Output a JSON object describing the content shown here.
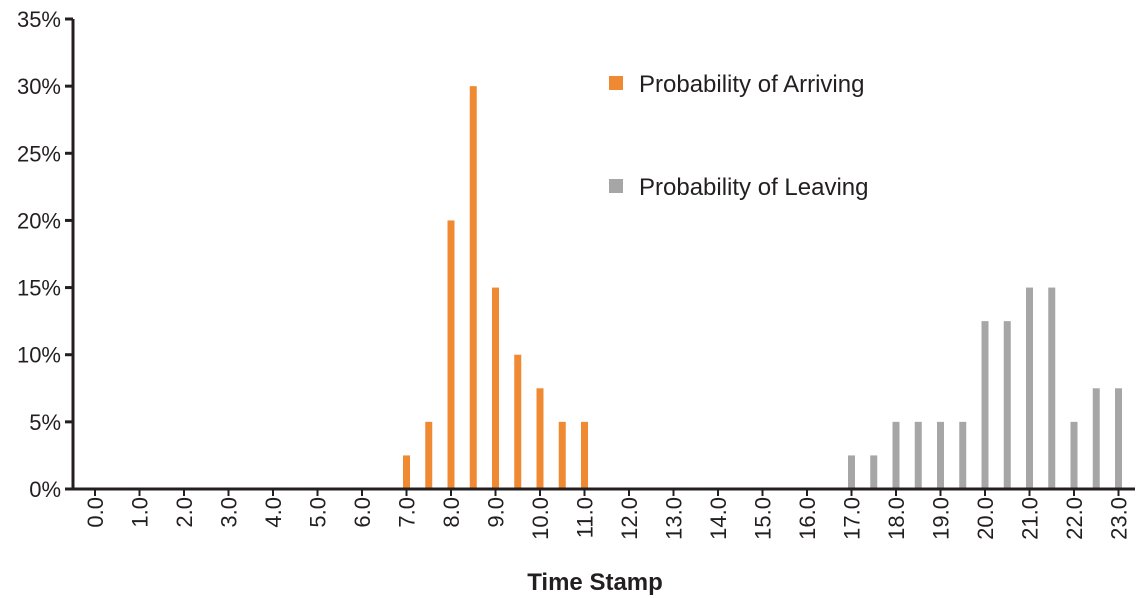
{
  "chart_data": {
    "type": "bar",
    "title": "",
    "xlabel": "Time Stamp",
    "ylabel": "",
    "ylim": [
      0,
      35
    ],
    "x_tick_labels": [
      "0.0",
      "1.0",
      "2.0",
      "3.0",
      "4.0",
      "5.0",
      "6.0",
      "7.0",
      "8.0",
      "9.0",
      "10.0",
      "11.0",
      "12.0",
      "13.0",
      "14.0",
      "15.0",
      "16.0",
      "17.0",
      "18.0",
      "19.0",
      "20.0",
      "21.0",
      "22.0",
      "23.0"
    ],
    "y_tick_labels": [
      "0%",
      "5%",
      "10%",
      "15%",
      "20%",
      "25%",
      "30%",
      "35%"
    ],
    "y_ticks": [
      0,
      5,
      10,
      15,
      20,
      25,
      30,
      35
    ],
    "grid": false,
    "legend_position": "top-right",
    "series": [
      {
        "name": "Probability of Arriving",
        "color": "#f08a32",
        "points": [
          {
            "x": 7.0,
            "y": 2.5
          },
          {
            "x": 7.5,
            "y": 5
          },
          {
            "x": 8.0,
            "y": 20
          },
          {
            "x": 8.5,
            "y": 30
          },
          {
            "x": 9.0,
            "y": 15
          },
          {
            "x": 9.5,
            "y": 10
          },
          {
            "x": 10.0,
            "y": 7.5
          },
          {
            "x": 10.5,
            "y": 5
          },
          {
            "x": 11.0,
            "y": 5
          }
        ]
      },
      {
        "name": "Probability of Leaving",
        "color": "#a6a6a6",
        "points": [
          {
            "x": 17.0,
            "y": 2.5
          },
          {
            "x": 17.5,
            "y": 2.5
          },
          {
            "x": 18.0,
            "y": 5
          },
          {
            "x": 18.5,
            "y": 5
          },
          {
            "x": 19.0,
            "y": 5
          },
          {
            "x": 19.5,
            "y": 5
          },
          {
            "x": 20.0,
            "y": 12.5
          },
          {
            "x": 20.5,
            "y": 12.5
          },
          {
            "x": 21.0,
            "y": 15
          },
          {
            "x": 21.5,
            "y": 15
          },
          {
            "x": 22.0,
            "y": 5
          },
          {
            "x": 22.5,
            "y": 7.5
          },
          {
            "x": 23.0,
            "y": 7.5
          }
        ]
      }
    ]
  }
}
